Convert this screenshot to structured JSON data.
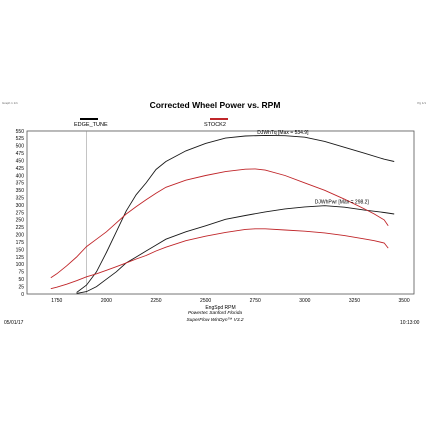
{
  "header": {
    "corner_left": "Graph 1 1/1",
    "corner_right": "Pg 1/1"
  },
  "chart_data": {
    "type": "line",
    "title": "Corrected Wheel Power vs. RPM",
    "xlabel": "EngSpd RPM",
    "ylabel": "",
    "xlim": [
      1600,
      3550
    ],
    "ylim": [
      0,
      550
    ],
    "xticks": [
      1750,
      2000,
      2250,
      2500,
      2750,
      3000,
      3250,
      3500
    ],
    "yticks": [
      0,
      25,
      50,
      75,
      100,
      125,
      150,
      175,
      200,
      225,
      250,
      275,
      300,
      325,
      350,
      375,
      400,
      425,
      450,
      475,
      500,
      525,
      550
    ],
    "grid": true,
    "legend": [
      {
        "name": "EDGE_TUNE",
        "color": "#000000"
      },
      {
        "name": "STOCK2",
        "color": "#c0262a"
      }
    ],
    "annotations": [
      {
        "text": "DJWhTq [Max = 534.9]",
        "x": 2760,
        "y": 536
      },
      {
        "text": "DJWhPwr [Max = 298.2]",
        "x": 3050,
        "y": 302
      }
    ],
    "series": [
      {
        "name": "EDGE_TUNE",
        "measure": "DJWhTq",
        "color": "#1a1a1a",
        "points": [
          [
            1850,
            5
          ],
          [
            1900,
            30
          ],
          [
            1950,
            75
          ],
          [
            2000,
            140
          ],
          [
            2050,
            210
          ],
          [
            2100,
            280
          ],
          [
            2150,
            335
          ],
          [
            2200,
            375
          ],
          [
            2250,
            420
          ],
          [
            2300,
            447
          ],
          [
            2400,
            483
          ],
          [
            2500,
            508
          ],
          [
            2600,
            526
          ],
          [
            2700,
            533
          ],
          [
            2800,
            535
          ],
          [
            2900,
            534
          ],
          [
            3000,
            529
          ],
          [
            3100,
            515
          ],
          [
            3200,
            495
          ],
          [
            3300,
            475
          ],
          [
            3400,
            455
          ],
          [
            3450,
            447
          ]
        ]
      },
      {
        "name": "EDGE_TUNE",
        "measure": "DJWhPwr",
        "color": "#1a1a1a",
        "points": [
          [
            1850,
            2
          ],
          [
            1900,
            8
          ],
          [
            1950,
            25
          ],
          [
            2000,
            50
          ],
          [
            2050,
            75
          ],
          [
            2100,
            105
          ],
          [
            2150,
            125
          ],
          [
            2200,
            145
          ],
          [
            2250,
            165
          ],
          [
            2300,
            185
          ],
          [
            2400,
            210
          ],
          [
            2500,
            230
          ],
          [
            2600,
            252
          ],
          [
            2700,
            265
          ],
          [
            2800,
            277
          ],
          [
            2900,
            287
          ],
          [
            3000,
            294
          ],
          [
            3100,
            298
          ],
          [
            3200,
            293
          ],
          [
            3300,
            283
          ],
          [
            3400,
            275
          ],
          [
            3450,
            270
          ]
        ]
      },
      {
        "name": "STOCK2",
        "measure": "DJWhTq",
        "color": "#c0262a",
        "points": [
          [
            1720,
            55
          ],
          [
            1750,
            68
          ],
          [
            1800,
            95
          ],
          [
            1850,
            125
          ],
          [
            1900,
            160
          ],
          [
            1950,
            185
          ],
          [
            2000,
            210
          ],
          [
            2050,
            240
          ],
          [
            2100,
            270
          ],
          [
            2150,
            295
          ],
          [
            2200,
            318
          ],
          [
            2250,
            340
          ],
          [
            2300,
            360
          ],
          [
            2400,
            384
          ],
          [
            2500,
            400
          ],
          [
            2600,
            413
          ],
          [
            2700,
            421
          ],
          [
            2750,
            422
          ],
          [
            2800,
            418
          ],
          [
            2900,
            400
          ],
          [
            3000,
            375
          ],
          [
            3100,
            350
          ],
          [
            3200,
            320
          ],
          [
            3300,
            287
          ],
          [
            3350,
            270
          ],
          [
            3400,
            250
          ],
          [
            3420,
            230
          ]
        ]
      },
      {
        "name": "STOCK2",
        "measure": "DJWhPwr",
        "color": "#c0262a",
        "points": [
          [
            1720,
            18
          ],
          [
            1750,
            23
          ],
          [
            1800,
            33
          ],
          [
            1850,
            45
          ],
          [
            1900,
            58
          ],
          [
            1950,
            68
          ],
          [
            2000,
            80
          ],
          [
            2050,
            92
          ],
          [
            2100,
            105
          ],
          [
            2150,
            118
          ],
          [
            2200,
            130
          ],
          [
            2250,
            145
          ],
          [
            2300,
            158
          ],
          [
            2400,
            180
          ],
          [
            2500,
            195
          ],
          [
            2600,
            208
          ],
          [
            2700,
            218
          ],
          [
            2750,
            220
          ],
          [
            2800,
            220
          ],
          [
            2900,
            216
          ],
          [
            3000,
            212
          ],
          [
            3100,
            206
          ],
          [
            3200,
            197
          ],
          [
            3300,
            186
          ],
          [
            3350,
            180
          ],
          [
            3400,
            172
          ],
          [
            3420,
            155
          ]
        ]
      }
    ]
  },
  "footer": {
    "date": "05/01/17",
    "time": "10:13:00",
    "line1": "Powertec Sanford Florida",
    "line2": "SuperFlow WinDyn™ V3.2"
  }
}
